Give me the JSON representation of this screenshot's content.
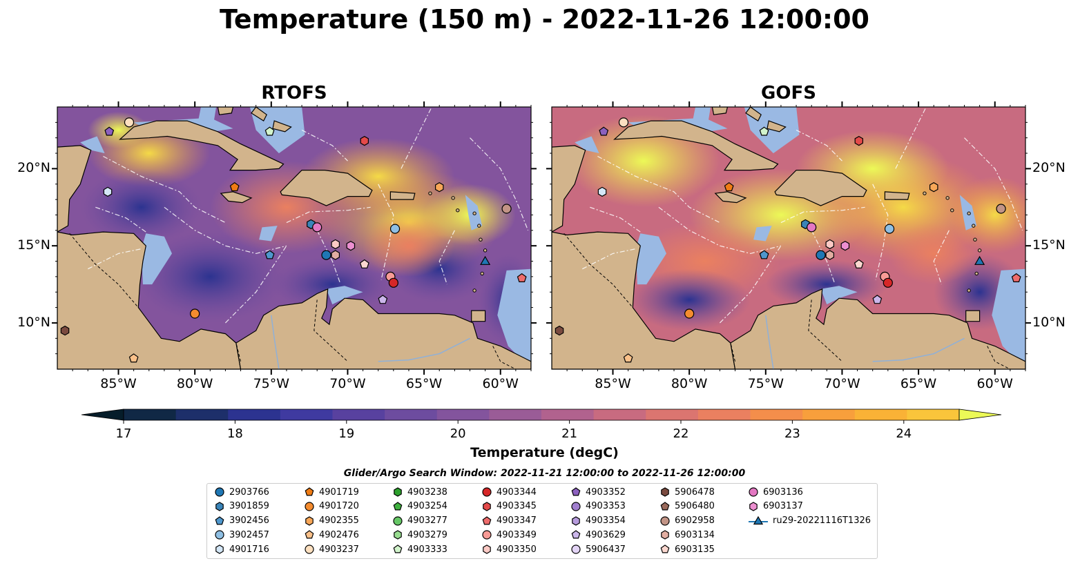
{
  "title": "Temperature (150 m) - 2022-11-26 12:00:00",
  "panels": [
    {
      "title": "RTOFS"
    },
    {
      "title": "GOFS"
    }
  ],
  "axes": {
    "lon_ticks": [
      "85°W",
      "80°W",
      "75°W",
      "70°W",
      "65°W",
      "60°W"
    ],
    "lat_ticks": [
      "20°N",
      "15°N",
      "10°N"
    ],
    "lon_range": [
      -89,
      -58
    ],
    "lat_range": [
      7,
      24
    ]
  },
  "colorbar": {
    "label": "Temperature (degC)",
    "min": 16.5,
    "max": 24.75,
    "step": 0.5,
    "ticks": [
      "17",
      "18",
      "19",
      "20",
      "21",
      "22",
      "23",
      "24"
    ],
    "tick_values": [
      17,
      18,
      19,
      20,
      21,
      22,
      23,
      24
    ],
    "colors": [
      "#072230",
      "#102845",
      "#1d2f6a",
      "#2c3390",
      "#3f3aa0",
      "#58419f",
      "#6d4c9f",
      "#83549d",
      "#9a5c97",
      "#b1628e",
      "#c86b80",
      "#db7570",
      "#ea8060",
      "#f48e4b",
      "#f89f3c",
      "#fab236",
      "#fac53b",
      "#f4da47"
    ],
    "under_color": "#061d2a",
    "over_color": "#ecf957"
  },
  "legend": {
    "title": "Glider/Argo Search Window: 2022-11-21 12:00:00 to 2022-11-26 12:00:00",
    "items": [
      {
        "label": "2903766",
        "marker": "circle",
        "color": "#1f77b4"
      },
      {
        "label": "3901859",
        "marker": "hexagon",
        "color": "#3a84b8"
      },
      {
        "label": "3902456",
        "marker": "pentagon",
        "color": "#4f97cd"
      },
      {
        "label": "3902457",
        "marker": "circle",
        "color": "#8fbfe3"
      },
      {
        "label": "4901716",
        "marker": "hexagon",
        "color": "#d4e7f7"
      },
      {
        "label": "4901719",
        "marker": "pentagon",
        "color": "#f07c14"
      },
      {
        "label": "4901720",
        "marker": "circle",
        "color": "#f48c2f"
      },
      {
        "label": "4902355",
        "marker": "hexagon",
        "color": "#f8a758"
      },
      {
        "label": "4902476",
        "marker": "pentagon",
        "color": "#fbc18a"
      },
      {
        "label": "4903237",
        "marker": "circle",
        "color": "#fde0c0"
      },
      {
        "label": "4903238",
        "marker": "hexagon",
        "color": "#2ca02c"
      },
      {
        "label": "4903254",
        "marker": "pentagon",
        "color": "#3fb13f"
      },
      {
        "label": "4903277",
        "marker": "circle",
        "color": "#66c766"
      },
      {
        "label": "4903279",
        "marker": "hexagon",
        "color": "#98dc90"
      },
      {
        "label": "4903333",
        "marker": "pentagon",
        "color": "#d2f4cc"
      },
      {
        "label": "4903344",
        "marker": "circle",
        "color": "#d62728"
      },
      {
        "label": "4903345",
        "marker": "hexagon",
        "color": "#e44a4a"
      },
      {
        "label": "4903347",
        "marker": "pentagon",
        "color": "#ee6c6c"
      },
      {
        "label": "4903349",
        "marker": "circle",
        "color": "#f89b96"
      },
      {
        "label": "4903350",
        "marker": "hexagon",
        "color": "#fccac5"
      },
      {
        "label": "4903352",
        "marker": "pentagon",
        "color": "#8c60bf"
      },
      {
        "label": "4903353",
        "marker": "circle",
        "color": "#a17fcf"
      },
      {
        "label": "4903354",
        "marker": "hexagon",
        "color": "#b69bdc"
      },
      {
        "label": "4903629",
        "marker": "pentagon",
        "color": "#cbb6ea"
      },
      {
        "label": "5906437",
        "marker": "circle",
        "color": "#e3d4f6"
      },
      {
        "label": "5906478",
        "marker": "hexagon",
        "color": "#7a4a3f"
      },
      {
        "label": "5906480",
        "marker": "pentagon",
        "color": "#9a6a5c"
      },
      {
        "label": "6902958",
        "marker": "circle",
        "color": "#c29486"
      },
      {
        "label": "6903134",
        "marker": "hexagon",
        "color": "#e2aea2"
      },
      {
        "label": "6903135",
        "marker": "pentagon",
        "color": "#fcd8d0"
      },
      {
        "label": "6903136",
        "marker": "circle",
        "color": "#e377c2"
      },
      {
        "label": "6903137",
        "marker": "hexagon",
        "color": "#ec8fd0"
      },
      {
        "label": "ru29-20221116T1326",
        "marker": "triangle-line",
        "color": "#1f77b4"
      }
    ]
  },
  "markers": [
    {
      "id": "4903237",
      "lon": -84.3,
      "lat": 23.0
    },
    {
      "id": "4903352",
      "lon": -85.6,
      "lat": 22.4
    },
    {
      "id": "4903333",
      "lon": -75.1,
      "lat": 22.4
    },
    {
      "id": "4903345",
      "lon": -68.9,
      "lat": 21.8
    },
    {
      "id": "4901716",
      "lon": -85.7,
      "lat": 18.5
    },
    {
      "id": "4901719",
      "lon": -77.4,
      "lat": 18.8
    },
    {
      "id": "4902355",
      "lon": -64.0,
      "lat": 18.8
    },
    {
      "id": "6902958",
      "lon": -59.6,
      "lat": 17.4
    },
    {
      "id": "3902457",
      "lon": -66.9,
      "lat": 16.1
    },
    {
      "id": "3901859",
      "lon": -72.4,
      "lat": 16.4
    },
    {
      "id": "6903136",
      "lon": -72.0,
      "lat": 16.2
    },
    {
      "id": "3902456",
      "lon": -75.1,
      "lat": 14.4
    },
    {
      "id": "2903766",
      "lon": -71.4,
      "lat": 14.4
    },
    {
      "id": "6903134",
      "lon": -70.8,
      "lat": 14.4
    },
    {
      "id": "4903350",
      "lon": -70.8,
      "lat": 15.1
    },
    {
      "id": "6903137",
      "lon": -69.8,
      "lat": 15.0
    },
    {
      "id": "6903135",
      "lon": -68.9,
      "lat": 13.8
    },
    {
      "id": "4903349",
      "lon": -67.2,
      "lat": 13.0
    },
    {
      "id": "4903344",
      "lon": -67.0,
      "lat": 12.6
    },
    {
      "id": "4903347",
      "lon": -58.6,
      "lat": 12.9
    },
    {
      "id": "4903629",
      "lon": -67.7,
      "lat": 11.5
    },
    {
      "id": "4901720",
      "lon": -80.0,
      "lat": 10.6
    },
    {
      "id": "5906478",
      "lon": -88.5,
      "lat": 9.5
    },
    {
      "id": "4902476",
      "lon": -84.0,
      "lat": 7.7
    },
    {
      "id": "ru29-20221116T1326",
      "lon": -61.0,
      "lat": 14.0
    }
  ]
}
